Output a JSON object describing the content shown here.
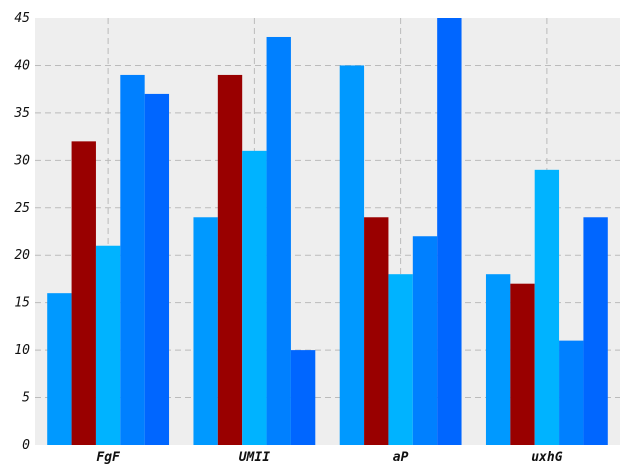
{
  "chart_data": {
    "type": "bar",
    "categories": [
      "FgF",
      "UMII",
      "aP",
      "uxhG"
    ],
    "series": [
      {
        "values": [
          16,
          24,
          40,
          18
        ],
        "color": "#0099ff"
      },
      {
        "values": [
          32,
          39,
          24,
          17
        ],
        "color": "#990000"
      },
      {
        "values": [
          21,
          31,
          18,
          29
        ],
        "color": "#00b3ff"
      },
      {
        "values": [
          39,
          43,
          22,
          11
        ],
        "color": "#0080ff"
      },
      {
        "values": [
          37,
          10,
          45,
          24
        ],
        "color": "#0066ff"
      }
    ],
    "title": "",
    "xlabel": "",
    "ylabel": "",
    "ylim": [
      0,
      45
    ],
    "yticks": [
      0,
      5,
      10,
      15,
      20,
      25,
      30,
      35,
      40,
      45
    ],
    "grid": true,
    "legend": "none",
    "plot_background": "#eeeeee",
    "grid_color": "#bbbbbb"
  }
}
